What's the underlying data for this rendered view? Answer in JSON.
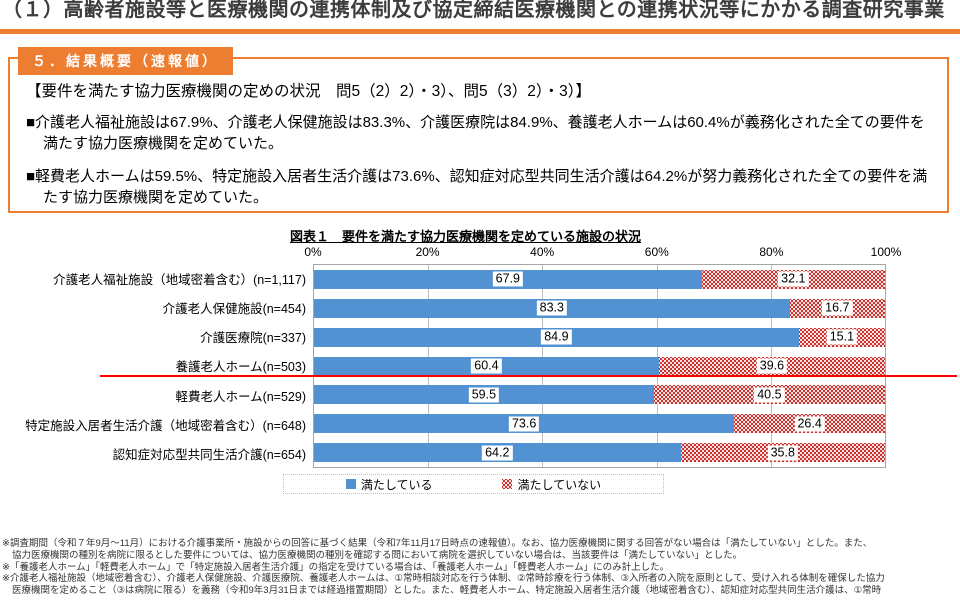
{
  "page_title": "（１）高齢者施設等と医療機関の連携体制及び協定締結医療機関との連携状況等にかかる調査研究事業",
  "summary_box": {
    "badge": "５．結果概要（速報値）",
    "heading": "【要件を満たす協力医療機関の定めの状況　問5（2）2）・3）、問5（3）2）・3）】",
    "bullets": {
      "b1": "■介護老人福祉施設は67.9%、介護老人保健施設は83.3%、介護医療院は84.9%、養護老人ホームは60.4%が義務化された全ての要件を満たす協力医療機関を定めていた。",
      "b2": "■軽費老人ホームは59.5%、特定施設入居者生活介護は73.6%、認知症対応型共同生活介護は64.2%が努力義務化された全ての要件を満たす協力医療機関を定めていた。"
    }
  },
  "chart_data": {
    "type": "bar",
    "orientation": "horizontal-stacked",
    "title": "図表１　要件を満たす協力医療機関を定めている施設の状況",
    "categories": [
      "介護老人福祉施設（地域密着含む）(n=1,117)",
      "介護老人保健施設(n=454)",
      "介護医療院(n=337)",
      "養護老人ホーム(n=503)",
      "軽費老人ホーム(n=529)",
      "特定施設入居者生活介護（地域密着含む）(n=648)",
      "認知症対応型共同生活介護(n=654)"
    ],
    "series": [
      {
        "name": "満たしている",
        "color": "#5291D2",
        "values": [
          67.9,
          83.3,
          84.9,
          60.4,
          59.5,
          73.6,
          64.2
        ]
      },
      {
        "name": "満たしていない",
        "color": "#C9342C",
        "pattern": "red-dot",
        "values": [
          32.1,
          16.7,
          15.1,
          39.6,
          40.5,
          26.4,
          35.8
        ]
      }
    ],
    "x_ticks": [
      "0%",
      "20%",
      "40%",
      "60%",
      "80%",
      "100%"
    ],
    "xlim": [
      0,
      100
    ],
    "grid": "vertical",
    "legend_position": "bottom",
    "annotation": "red horizontal divider line after 養護老人ホーム row"
  },
  "footnotes": {
    "f1": "※調査期間（令和７年9月～11月）における介護事業所・施設からの回答に基づく結果（令和7年11月17日時点の速報値）。なお、協力医療機関に関する回答がない場合は「満たしていない」とした。また、",
    "f2": "協力医療機関の種別を病院に限るとした要件については、協力医療機関の種別を確認する問において病院を選択していない場合は、当該要件は「満たしていない」とした。",
    "f3": "※「養護老人ホーム」「軽費老人ホーム」で「特定施設入居者生活介護」の指定を受けている場合は、「養護老人ホーム」「軽費老人ホーム」にのみ計上した。",
    "f4": "※介護老人福祉施設（地域密着含む）、介護老人保健施設、介護医療院、養護老人ホームは、①常時相談対応を行う体制、②常時診療を行う体制、③入所者の入院を原則として、受け入れる体制を確保した協力",
    "f5": "医療機関を定めること（③は病院に限る）を義務（令和9年3月31日までは経過措置期間）とした。また、軽費老人ホーム、特定施設入居者生活介護（地域密着含む）、認知症対応型共同生活介護は、①常時"
  }
}
